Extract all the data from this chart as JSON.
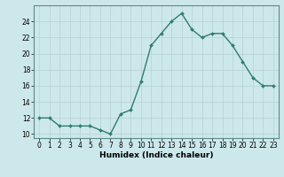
{
  "x": [
    0,
    1,
    2,
    3,
    4,
    5,
    6,
    7,
    8,
    9,
    10,
    11,
    12,
    13,
    14,
    15,
    16,
    17,
    18,
    19,
    20,
    21,
    22,
    23
  ],
  "y": [
    12,
    12,
    11,
    11,
    11,
    11,
    10.5,
    10,
    12.5,
    13,
    16.5,
    21,
    22.5,
    24,
    25,
    23,
    22,
    22.5,
    22.5,
    21,
    19,
    17,
    16,
    16
  ],
  "line_color": "#2e7d6e",
  "marker": "D",
  "marker_size": 2.0,
  "bg_color": "#cde8ea",
  "grid_color": "#b8d0d2",
  "xlabel": "Humidex (Indice chaleur)",
  "xlim": [
    -0.5,
    23.5
  ],
  "ylim": [
    9.5,
    26
  ],
  "yticks": [
    10,
    12,
    14,
    16,
    18,
    20,
    22,
    24
  ],
  "xticks": [
    0,
    1,
    2,
    3,
    4,
    5,
    6,
    7,
    8,
    9,
    10,
    11,
    12,
    13,
    14,
    15,
    16,
    17,
    18,
    19,
    20,
    21,
    22,
    23
  ],
  "xtick_labels": [
    "0",
    "1",
    "2",
    "3",
    "4",
    "5",
    "6",
    "7",
    "8",
    "9",
    "10",
    "11",
    "12",
    "13",
    "14",
    "15",
    "16",
    "17",
    "18",
    "19",
    "20",
    "21",
    "22",
    "23"
  ],
  "tick_fontsize": 5.5,
  "xlabel_fontsize": 6.5,
  "line_width": 1.0,
  "spine_color": "#5a8a8a"
}
